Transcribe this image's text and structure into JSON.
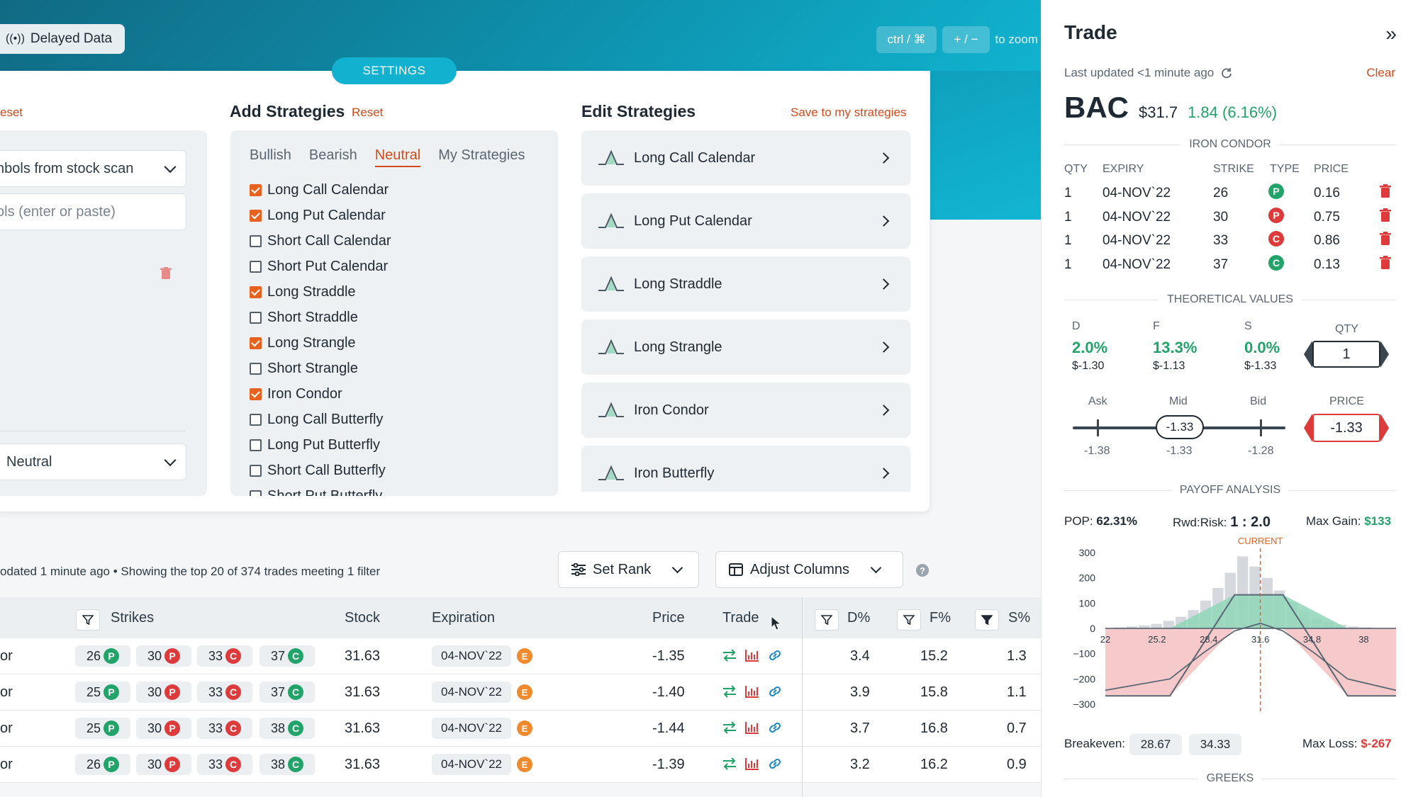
{
  "header": {
    "delayed_label": "Delayed Data",
    "zoom_keys": [
      "ctrl / ⌘",
      "+ / −"
    ],
    "zoom_hint": "to zoom",
    "settings_tab": "SETTINGS",
    "colors": {
      "accent": "#12b1cf",
      "orange": "#d24b1c",
      "green": "#22a36a",
      "red": "#dd3b3b"
    }
  },
  "left_panel": {
    "reset": "eset",
    "symbols_select": "nbols from stock scan",
    "symbols_input_placeholder": "ols (enter or paste)",
    "outlook_select": "Neutral"
  },
  "add_strategies": {
    "title": "Add Strategies",
    "reset": "Reset",
    "tabs": [
      "Bullish",
      "Bearish",
      "Neutral",
      "My Strategies"
    ],
    "active_tab": "Neutral",
    "items": [
      {
        "label": "Long Call Calendar",
        "checked": true
      },
      {
        "label": "Long Put Calendar",
        "checked": true
      },
      {
        "label": "Short Call Calendar",
        "checked": false
      },
      {
        "label": "Short Put Calendar",
        "checked": false
      },
      {
        "label": "Long Straddle",
        "checked": true
      },
      {
        "label": "Short Straddle",
        "checked": false
      },
      {
        "label": "Long Strangle",
        "checked": true
      },
      {
        "label": "Short Strangle",
        "checked": false
      },
      {
        "label": "Iron Condor",
        "checked": true
      },
      {
        "label": "Long Call Butterfly",
        "checked": false
      },
      {
        "label": "Long Put Butterfly",
        "checked": false
      },
      {
        "label": "Short Call Butterfly",
        "checked": false
      },
      {
        "label": "Short Put Butterfly",
        "checked": false
      }
    ]
  },
  "edit_strategies": {
    "title": "Edit Strategies",
    "save_link": "Save to my strategies",
    "items": [
      "Long Call Calendar",
      "Long Put Calendar",
      "Long Straddle",
      "Long Strangle",
      "Iron Condor",
      "Iron Butterfly"
    ]
  },
  "results": {
    "status": "odated 1 minute ago  •  Showing the top 20 of 374 trades meeting 1 filter",
    "set_rank": "Set Rank",
    "adjust_columns": "Adjust Columns",
    "help": "?",
    "columns": {
      "strikes": "Strikes",
      "stock": "Stock",
      "expiration": "Expiration",
      "price": "Price",
      "trade": "Trade",
      "d": "D%",
      "f": "F%",
      "s": "S%"
    },
    "rows": [
      {
        "name": "or",
        "strikes": [
          [
            "26",
            "P",
            "g"
          ],
          [
            "30",
            "P",
            "r"
          ],
          [
            "33",
            "C",
            "r"
          ],
          [
            "37",
            "C",
            "g"
          ]
        ],
        "stock": "31.63",
        "expiration": "04-NOV`22",
        "earn": "E",
        "price": "-1.35",
        "d": "3.4",
        "f": "15.2",
        "s": "1.3"
      },
      {
        "name": "or",
        "strikes": [
          [
            "25",
            "P",
            "g"
          ],
          [
            "30",
            "P",
            "r"
          ],
          [
            "33",
            "C",
            "r"
          ],
          [
            "37",
            "C",
            "g"
          ]
        ],
        "stock": "31.63",
        "expiration": "04-NOV`22",
        "earn": "E",
        "price": "-1.40",
        "d": "3.9",
        "f": "15.8",
        "s": "1.1"
      },
      {
        "name": "or",
        "strikes": [
          [
            "25",
            "P",
            "g"
          ],
          [
            "30",
            "P",
            "r"
          ],
          [
            "33",
            "C",
            "r"
          ],
          [
            "38",
            "C",
            "g"
          ]
        ],
        "stock": "31.63",
        "expiration": "04-NOV`22",
        "earn": "E",
        "price": "-1.44",
        "d": "3.7",
        "f": "16.8",
        "s": "0.7"
      },
      {
        "name": "or",
        "strikes": [
          [
            "26",
            "P",
            "g"
          ],
          [
            "30",
            "P",
            "r"
          ],
          [
            "33",
            "C",
            "r"
          ],
          [
            "38",
            "C",
            "g"
          ]
        ],
        "stock": "31.63",
        "expiration": "04-NOV`22",
        "earn": "E",
        "price": "-1.39",
        "d": "3.2",
        "f": "16.2",
        "s": "0.9"
      }
    ]
  },
  "trade_panel": {
    "title": "Trade",
    "updated": "Last updated <1 minute ago",
    "clear": "Clear",
    "ticker": "BAC",
    "price": "$31.7",
    "change": "1.84 (6.16%)",
    "strategy": "IRON CONDOR",
    "leg_headers": {
      "qty": "QTY",
      "expiry": "EXPIRY",
      "strike": "STRIKE",
      "type": "TYPE",
      "price": "PRICE"
    },
    "legs": [
      {
        "qty": "1",
        "expiry": "04-NOV`22",
        "strike": "26",
        "type": "P",
        "color": "g",
        "price": "0.16"
      },
      {
        "qty": "1",
        "expiry": "04-NOV`22",
        "strike": "30",
        "type": "P",
        "color": "r",
        "price": "0.75"
      },
      {
        "qty": "1",
        "expiry": "04-NOV`22",
        "strike": "33",
        "type": "C",
        "color": "r",
        "price": "0.86"
      },
      {
        "qty": "1",
        "expiry": "04-NOV`22",
        "strike": "37",
        "type": "C",
        "color": "g",
        "price": "0.13"
      }
    ],
    "theoretical": {
      "title": "THEORETICAL VALUES",
      "d_label": "D",
      "d_pct": "2.0%",
      "d_val": "$-1.30",
      "f_label": "F",
      "f_pct": "13.3%",
      "f_val": "$-1.13",
      "s_label": "S",
      "s_pct": "0.0%",
      "s_val": "$-1.33",
      "qty_label": "QTY",
      "qty": "1",
      "ask_label": "Ask",
      "mid_label": "Mid",
      "bid_label": "Bid",
      "mid_value": "-1.33",
      "ask_val": "-1.38",
      "mid_val": "-1.33",
      "bid_val": "-1.28",
      "price_label": "PRICE",
      "price": "-1.33"
    },
    "payoff": {
      "title": "PAYOFF ANALYSIS",
      "pop_label": "POP:",
      "pop": "62.31%",
      "rr_label": "Rwd:Risk:",
      "rr": "1 : 2.0",
      "maxgain_label": "Max Gain:",
      "maxgain": "$133",
      "breakeven_label": "Breakeven:",
      "breakevens": [
        "28.67",
        "34.33"
      ],
      "maxloss_label": "Max Loss:",
      "maxloss": "$-267",
      "current_label": "CURRENT"
    },
    "greeks_title": "GREEKS"
  },
  "chart_data": {
    "type": "line",
    "xlabel": "",
    "ylabel": "",
    "x_ticks": [
      "22",
      "25.2",
      "28.4",
      "31.6",
      "34.8",
      "38"
    ],
    "y_ticks": [
      "300",
      "200",
      "100",
      "0",
      "−100",
      "−200",
      "−300"
    ],
    "ylim": [
      -300,
      300
    ],
    "xlim": [
      22,
      40
    ],
    "series": [
      {
        "x": [
          22,
          26,
          30,
          33,
          37,
          40
        ],
        "y": [
          -267,
          -267,
          133,
          133,
          -267,
          -267
        ]
      },
      {
        "x": [
          22,
          26,
          28,
          30,
          31.6,
          33,
          35,
          37,
          40
        ],
        "y": [
          -245,
          -200,
          -100,
          -10,
          20,
          -10,
          -100,
          -200,
          -245
        ]
      }
    ],
    "current_x": 31.6,
    "distribution": [
      4,
      8,
      12,
      18,
      30,
      46,
      72,
      110,
      160,
      220,
      285,
      245,
      200,
      150,
      104,
      68,
      40,
      24,
      14,
      8,
      4
    ]
  }
}
